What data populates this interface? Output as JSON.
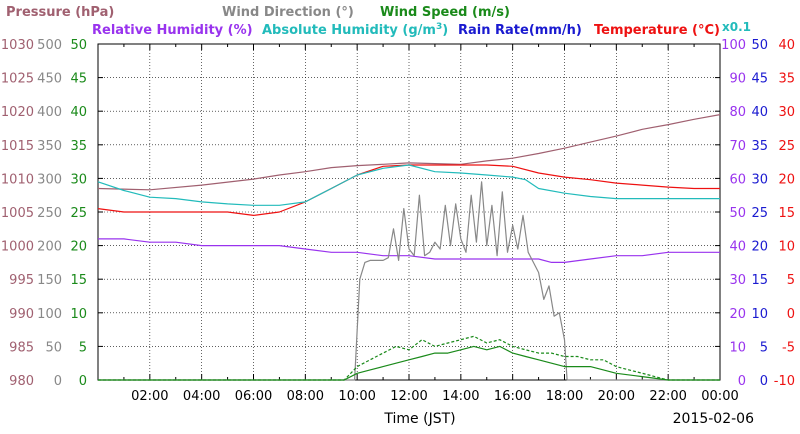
{
  "legend": {
    "pressure": "Pressure (hPa)",
    "wind_direction": "Wind Direction (°)",
    "wind_speed": "Wind Speed (m/s)",
    "relative_humidity": "Relative Humidity (%)",
    "absolute_humidity": "Absolute Humidity (g/m",
    "absolute_humidity_sup": "3",
    "absolute_humidity_close": ")",
    "rain_rate": "Rain Rate(mm/h)",
    "temperature": "Temperature (°C)",
    "scale_note": "x0.1"
  },
  "colors": {
    "pressure": "#a06070",
    "wind_direction": "#888888",
    "wind_speed": "#1a8a1a",
    "relative_humidity": "#9933ee",
    "absolute_humidity": "#22bbbb",
    "rain_rate": "#1a1ad0",
    "temperature": "#ee1111"
  },
  "chart_data": {
    "type": "line",
    "xlabel": "Time (JST)",
    "date_label": "2015-02-06",
    "x_ticks": [
      "02:00",
      "04:00",
      "06:00",
      "08:00",
      "10:00",
      "12:00",
      "14:00",
      "16:00",
      "18:00",
      "20:00",
      "22:00",
      "00:00"
    ],
    "xlim_hours": [
      0,
      24
    ],
    "axes": {
      "pressure": {
        "ticks": [
          "1030",
          "1025",
          "1020",
          "1015",
          "1010",
          "1005",
          "1000",
          "995",
          "990",
          "985",
          "980"
        ],
        "range": [
          980,
          1030
        ]
      },
      "wind_direction": {
        "ticks": [
          "500",
          "450",
          "400",
          "350",
          "300",
          "250",
          "200",
          "150",
          "100",
          "50",
          "0"
        ],
        "range": [
          0,
          500
        ]
      },
      "wind_speed": {
        "ticks": [
          "50",
          "45",
          "40",
          "35",
          "30",
          "25",
          "20",
          "15",
          "10",
          "5",
          "0"
        ],
        "range": [
          0,
          50
        ]
      },
      "relative_humidity": {
        "ticks": [
          "100",
          "90",
          "80",
          "70",
          "60",
          "50",
          "40",
          "30",
          "20",
          "10",
          "0"
        ],
        "range": [
          0,
          100
        ]
      },
      "rain_rate": {
        "ticks": [
          "50",
          "45",
          "40",
          "35",
          "30",
          "25",
          "20",
          "15",
          "10",
          "5",
          "0"
        ],
        "range": [
          0,
          50
        ]
      },
      "temperature": {
        "ticks": [
          "40",
          "35",
          "30",
          "25",
          "20",
          "15",
          "10",
          "5",
          "0",
          "-5",
          "-10"
        ],
        "range": [
          -10,
          40
        ]
      }
    },
    "series": [
      {
        "key": "pressure",
        "axis": "pressure",
        "x": [
          0,
          2,
          4,
          6,
          7,
          8,
          9,
          10,
          11,
          12,
          13,
          14,
          15,
          16,
          17,
          18,
          19,
          20,
          21,
          22,
          23,
          24
        ],
        "y": [
          1008.5,
          1008.3,
          1009.0,
          1009.9,
          1010.5,
          1011.0,
          1011.6,
          1011.9,
          1012.1,
          1012.3,
          1012.2,
          1012.1,
          1012.6,
          1013.0,
          1013.7,
          1014.5,
          1015.4,
          1016.3,
          1017.3,
          1018.0,
          1018.8,
          1019.5
        ]
      },
      {
        "key": "temperature",
        "axis": "temperature",
        "x": [
          0,
          1,
          2,
          3,
          4,
          5,
          6,
          7,
          8,
          9,
          10,
          11,
          12,
          13,
          14,
          15,
          16,
          17,
          18,
          19,
          20,
          21,
          22,
          23,
          24
        ],
        "y": [
          15.5,
          15.0,
          15.0,
          15.0,
          15.0,
          15.0,
          14.5,
          15.0,
          16.5,
          18.5,
          20.5,
          21.8,
          22.0,
          22.0,
          22.0,
          22.0,
          21.8,
          20.8,
          20.2,
          19.8,
          19.3,
          19.0,
          18.7,
          18.5,
          18.5
        ]
      },
      {
        "key": "absolute_humidity",
        "axis": "temperature",
        "x": [
          0,
          1,
          2,
          3,
          4,
          5,
          6,
          7,
          8,
          8.5,
          9,
          10,
          11,
          12,
          13,
          14,
          15,
          16,
          16.5,
          17,
          18,
          19,
          20,
          21,
          22,
          23,
          24
        ],
        "y": [
          19.5,
          18.2,
          17.2,
          17.0,
          16.5,
          16.2,
          16.0,
          16.0,
          16.5,
          17.5,
          18.5,
          20.5,
          21.5,
          22.0,
          21.0,
          20.8,
          20.5,
          20.2,
          19.8,
          18.5,
          17.8,
          17.3,
          17.0,
          17.0,
          17.0,
          17.0,
          17.0
        ]
      },
      {
        "key": "relative_humidity",
        "axis": "relative_humidity",
        "x": [
          0,
          1,
          2,
          3,
          4,
          5,
          6,
          7,
          8,
          9,
          10,
          11,
          12,
          13,
          14,
          15,
          16,
          17,
          17.5,
          18,
          19,
          20,
          21,
          22,
          23,
          24
        ],
        "y": [
          42,
          42,
          41,
          41,
          40,
          40,
          40,
          40,
          39,
          38,
          38,
          37,
          37,
          36,
          36,
          36,
          36,
          36,
          35,
          35,
          36,
          37,
          37,
          38,
          38,
          38
        ]
      },
      {
        "key": "wind_direction",
        "axis": "wind_direction",
        "x": [
          0,
          9.9,
          10.1,
          10.3,
          10.5,
          11,
          11.2,
          11.4,
          11.6,
          11.8,
          12,
          12.2,
          12.4,
          12.6,
          12.8,
          13,
          13.2,
          13.4,
          13.6,
          13.8,
          14,
          14.2,
          14.4,
          14.6,
          14.8,
          15,
          15.2,
          15.4,
          15.6,
          15.8,
          16,
          16.2,
          16.4,
          16.6,
          16.8,
          17,
          17.2,
          17.4,
          17.6,
          17.8,
          18,
          18.1,
          18.3,
          24
        ],
        "y": [
          0,
          0,
          150,
          175,
          178,
          178,
          182,
          225,
          178,
          255,
          195,
          185,
          275,
          185,
          190,
          205,
          195,
          260,
          200,
          262,
          210,
          190,
          275,
          205,
          295,
          200,
          260,
          185,
          280,
          190,
          230,
          195,
          245,
          190,
          175,
          160,
          120,
          140,
          95,
          100,
          60,
          0,
          0,
          0
        ]
      },
      {
        "key": "wind_speed",
        "axis": "wind_speed",
        "x": [
          0,
          9.5,
          10,
          10.5,
          11,
          11.5,
          12,
          12.5,
          13,
          13.5,
          14,
          14.5,
          15,
          15.5,
          16,
          16.5,
          17,
          17.5,
          18,
          18.5,
          19,
          19.5,
          20,
          21,
          22,
          23,
          24
        ],
        "y": [
          0,
          0,
          1,
          1.5,
          2,
          2.5,
          3,
          3.5,
          4,
          4,
          4.5,
          5,
          4.5,
          5,
          4,
          3.5,
          3,
          2.5,
          2,
          2,
          2,
          1.5,
          1,
          0.5,
          0,
          0,
          0
        ]
      },
      {
        "key": "wind_speed_gust",
        "axis": "wind_speed",
        "color_key": "wind_speed",
        "dashed": true,
        "x": [
          0,
          9.5,
          10,
          10.5,
          11,
          11.5,
          12,
          12.5,
          13,
          13.5,
          14,
          14.5,
          15,
          15.5,
          16,
          16.5,
          17,
          17.5,
          18,
          18.5,
          19,
          19.5,
          20,
          21,
          22,
          23,
          24
        ],
        "y": [
          0,
          0,
          2,
          3,
          4,
          5,
          4.5,
          6,
          5,
          5.5,
          6,
          6.5,
          5.5,
          6,
          5,
          4.5,
          4,
          4,
          3.5,
          3.5,
          3,
          3,
          2,
          1,
          0,
          0,
          0
        ]
      }
    ]
  }
}
